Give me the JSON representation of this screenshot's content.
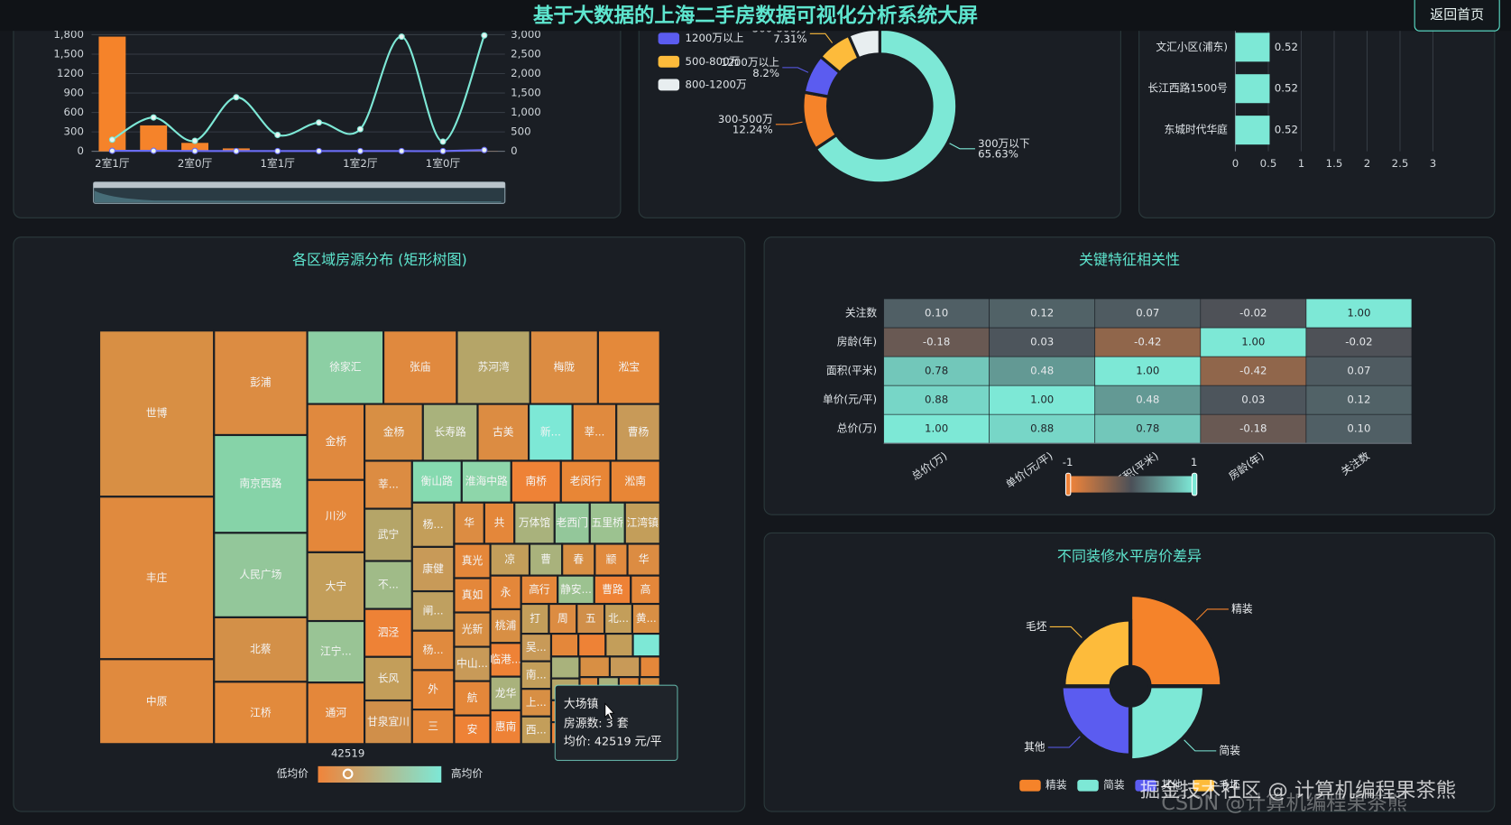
{
  "header": {
    "title": "基于大数据的上海二手房数据可视化分析系统大屏",
    "button": "返回首页",
    "watermarks": [
      "掘金技术社区 @ 计算机编程果茶熊",
      "CSDN @计算机编程果茶熊"
    ]
  },
  "chart_data": [
    {
      "type": "combo",
      "categories": [
        "2室1厅",
        null,
        "2室0厅",
        null,
        "1室1厅",
        null,
        "1室2厅",
        null,
        "1室0厅",
        null
      ],
      "ylim": [
        0,
        1800
      ],
      "yticks": [
        0,
        300,
        600,
        900,
        1200,
        {
          "value": 1500,
          "label": "1,500"
        },
        {
          "value": 1800,
          "label": "1,800"
        }
      ],
      "y2lim": [
        0,
        3000
      ],
      "y2ticks": [
        0,
        500,
        {
          "value": 1000,
          "label": "1,000"
        },
        {
          "value": 1500,
          "label": "1,500"
        },
        {
          "value": 2000,
          "label": "2,000"
        },
        {
          "value": 2500,
          "label": "2,500"
        },
        {
          "value": 3000,
          "label": "3,000"
        }
      ],
      "grid": true,
      "series": [
        {
          "type": "bar",
          "color": "#f5832a",
          "values": [
            1770,
            400,
            130,
            45,
            5,
            3,
            3,
            2,
            2,
            2
          ]
        },
        {
          "type": "line",
          "axis": "y2",
          "color": "#7de8d6",
          "values": [
            300,
            870,
            270,
            1390,
            420,
            740,
            570,
            2950,
            250,
            2980
          ]
        },
        {
          "type": "line",
          "color": "#6a6cf5",
          "values": [
            8,
            8,
            6,
            4,
            4,
            4,
            4,
            4,
            4,
            20
          ]
        }
      ]
    },
    {
      "type": "pie",
      "categories": [
        "300万以下",
        "300-500万",
        "1200万以上",
        "500-800万",
        "800-1200万"
      ],
      "values": [
        65.63,
        12.24,
        8.2,
        7.31,
        6.62
      ],
      "value_labels": [
        "65.63%",
        "12.24%",
        "8.2%",
        "7.31%",
        null
      ],
      "colors": [
        "#7de8d6",
        "#f5832a",
        "#5b5cf0",
        "#fdbb3b",
        "#e8eef0"
      ]
    },
    {
      "type": "hbar",
      "categories": [
        "文汇小区(浦东)",
        "长江西路1500号",
        "东城时代华庭"
      ],
      "values": [
        0.52,
        0.52,
        0.52
      ],
      "color": "#7de8d6",
      "xlim": [
        0,
        3
      ],
      "xticks": [
        0,
        0.5,
        1,
        1.5,
        2,
        2.5,
        3
      ]
    },
    {
      "type": "treemap",
      "title": "各区域房源分布 (矩形树图)",
      "names": [
        "世博",
        "丰庄",
        "中原",
        "彭浦",
        "南京西路",
        "人民广场",
        "北蔡",
        "江桥",
        "徐家汇",
        "张庙",
        "苏河湾",
        "梅陇",
        "淞宝",
        "金桥",
        "川沙",
        "大宁",
        "江宁...",
        "通河",
        "金杨",
        "长寿路",
        "古美",
        "新...",
        "莘...",
        "曹杨",
        "莘...",
        "武宁",
        "不...",
        "泗泾",
        "长风",
        "甘泉宜川",
        "衡山路",
        "淮海中路",
        "南桥",
        "老闵行",
        "淞南",
        "杨...",
        "康健",
        "闸...",
        "杨...",
        "外",
        "三",
        "华",
        "共",
        "万体馆",
        "老西门",
        "五里桥",
        "江湾镇",
        "真光",
        "真如",
        "光新",
        "中山...",
        "航",
        "安",
        "凉",
        "曹",
        "春",
        "颛",
        "华",
        "永",
        "桃浦",
        "临港...",
        "龙华",
        "惠南",
        "高行",
        "静安...",
        "曹路",
        "高",
        "打",
        "周",
        "五",
        "北...",
        "黄...",
        "吴...",
        "南...",
        "上...",
        "西...",
        null,
        null,
        null,
        null,
        null,
        null,
        null,
        null,
        null,
        null,
        null,
        null,
        null,
        null,
        null,
        null,
        null,
        null,
        null,
        null,
        null,
        null,
        null,
        null,
        null,
        null
      ],
      "values": [
        92,
        90,
        47,
        47,
        44,
        38,
        29,
        28,
        27,
        26,
        26,
        24,
        22,
        21,
        20,
        19,
        17,
        17,
        16,
        15,
        14,
        12,
        12,
        12,
        11,
        12,
        11,
        11,
        10,
        10,
        10,
        10,
        10,
        10,
        10,
        9,
        9,
        8,
        8,
        8,
        7,
        6,
        6,
        8,
        7,
        7,
        7,
        6,
        6,
        6,
        6,
        6,
        5,
        6,
        5,
        5,
        5,
        5,
        5,
        5,
        5,
        5,
        5,
        5,
        5,
        5,
        4,
        4,
        4,
        4,
        4,
        4,
        4,
        4,
        4,
        4,
        3,
        3,
        3,
        3,
        3,
        3,
        3,
        3,
        3,
        3,
        2,
        2,
        2,
        2,
        2,
        2,
        2,
        2,
        2,
        2,
        2,
        2,
        1,
        1,
        1,
        1
      ],
      "colors": [
        "#d88f44",
        "#e08a3e",
        "#e08a3e",
        "#dc8c42",
        "#86d3a8",
        "#93c79a",
        "#d39048",
        "#e28a3c",
        "#8ccfa4",
        "#e0893e",
        "#b5a568",
        "#dc8c42",
        "#e4893a",
        "#e0893e",
        "#e4873a",
        "#c39e5a",
        "#99c495",
        "#e4873a",
        "#d88f44",
        "#a9b27c",
        "#dc8c42",
        "#7de8d6",
        "#e08a3e",
        "#c89a58",
        "#dc8c42",
        "#b5a568",
        "#a0bb88",
        "#ee8236",
        "#c39e5a",
        "#d08f4a",
        "#86dab0",
        "#8ed6aa",
        "#ee8236",
        "#e88636",
        "#e88636",
        "#c39e5a",
        "#c89a58",
        "#bfa060",
        "#e08a3e",
        "#e4873a",
        "#e4873a",
        "#dc8c42",
        "#e4873a",
        "#a9b27c",
        "#93c79a",
        "#9cc290",
        "#c39e5a",
        "#e4873a",
        "#e4873a",
        "#d88f44",
        "#c89a58",
        "#e4873a",
        "#ee8236",
        "#c39e5a",
        "#a9b27c",
        "#d88f44",
        "#e08a3e",
        "#dc8c42",
        "#e4873a",
        "#d88f44",
        "#ee8236",
        "#a9b27c",
        "#ee8236",
        "#e4873a",
        "#9cc290",
        "#ee8236",
        "#e4873a",
        "#c39e5a",
        "#dc8c42",
        "#d08f4a",
        "#c39e5a",
        "#d88f44",
        "#c89a58",
        "#c39e5a",
        "#d88f44",
        "#c39e5a",
        "#e4873a",
        "#ee8236",
        "#c39e5a",
        "#7de8d6",
        "#a9b27c",
        "#b5a568",
        "#e4873a",
        "#ee8236",
        "#d88f44",
        "#c89a58",
        "#e4873a",
        "#dc8c42",
        "#ee8236",
        "#c39e5a",
        "#a9b27c",
        "#e08a3e",
        "#d88f44",
        "#e4873a",
        "#c89a58",
        "#ee8236",
        "#dc8c42",
        "#c39e5a",
        "#e4873a",
        "#d88f44",
        "#ee8236",
        "#c39e5a"
      ],
      "visualmap": {
        "value": 42519,
        "min_label": "低均价",
        "max_label": "高均价"
      },
      "tooltip": {
        "name": "大场镇",
        "lines": [
          "房源数: 3 套",
          "均价: 42519 元/平"
        ]
      }
    },
    {
      "type": "heatmap",
      "title": "关键特征相关性",
      "x_categories": [
        "总价(万)",
        "单价(元/平)",
        "面积(平米)",
        "房龄(年)",
        "关注数"
      ],
      "y_categories": [
        "总价(万)",
        "单价(元/平)",
        "面积(平米)",
        "房龄(年)",
        "关注数"
      ],
      "values": [
        [
          1,
          0.88,
          0.78,
          -0.18,
          0.1
        ],
        [
          0.88,
          1,
          0.48,
          0.03,
          0.12
        ],
        [
          0.78,
          0.48,
          1,
          -0.42,
          0.07
        ],
        [
          -0.18,
          0.03,
          -0.42,
          1,
          -0.02
        ],
        [
          0.1,
          0.12,
          0.07,
          -0.02,
          1
        ]
      ],
      "value_labels": [
        [
          "1.00",
          "0.88",
          "0.78",
          "-0.18",
          "0.10"
        ],
        [
          "0.88",
          "1.00",
          "0.48",
          "0.03",
          "0.12"
        ],
        [
          "0.78",
          "0.48",
          "1.00",
          "-0.42",
          "0.07"
        ],
        [
          "-0.18",
          "0.03",
          "-0.42",
          "1.00",
          "-0.02"
        ],
        [
          "0.10",
          "0.12",
          "0.07",
          "-0.02",
          "1.00"
        ]
      ],
      "visualmap": {
        "min": -1,
        "max": 1
      },
      "colors": [
        "#f0843a",
        "#4b5058",
        "#7de8d6"
      ]
    },
    {
      "type": "rose",
      "title": "不同装修水平房价差异",
      "categories": [
        "精装",
        "简装",
        "其他",
        "毛坯"
      ],
      "values": [
        58000,
        44000,
        40000,
        38000
      ],
      "colors": [
        "#f5832a",
        "#7de8d6",
        "#5b5cf0",
        "#fdbb3b"
      ]
    }
  ]
}
